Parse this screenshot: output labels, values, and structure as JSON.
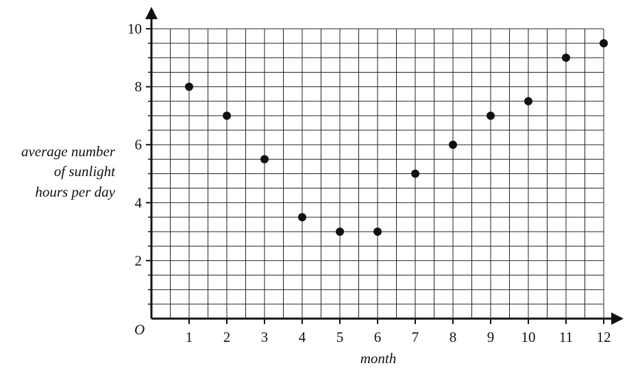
{
  "chart_data": {
    "type": "scatter",
    "x": [
      1,
      2,
      3,
      4,
      5,
      6,
      7,
      8,
      9,
      10,
      11,
      12
    ],
    "y": [
      8,
      7,
      5.5,
      3.5,
      3,
      3,
      5,
      6,
      7,
      7.5,
      9,
      9.5
    ],
    "xlabel": "month",
    "ylabel_lines": [
      "average number",
      "of sunlight",
      "hours per day"
    ],
    "origin_label": "O",
    "xlim": [
      0,
      12
    ],
    "ylim": [
      0,
      10
    ],
    "x_ticks": [
      1,
      2,
      3,
      4,
      5,
      6,
      7,
      8,
      9,
      10,
      11,
      12
    ],
    "y_ticks": [
      2,
      4,
      6,
      8,
      10
    ],
    "grid": true,
    "grid_minor_x": 0.5,
    "grid_minor_y": 0.5,
    "marker_color": "#111111",
    "grid_color": "#222222"
  }
}
